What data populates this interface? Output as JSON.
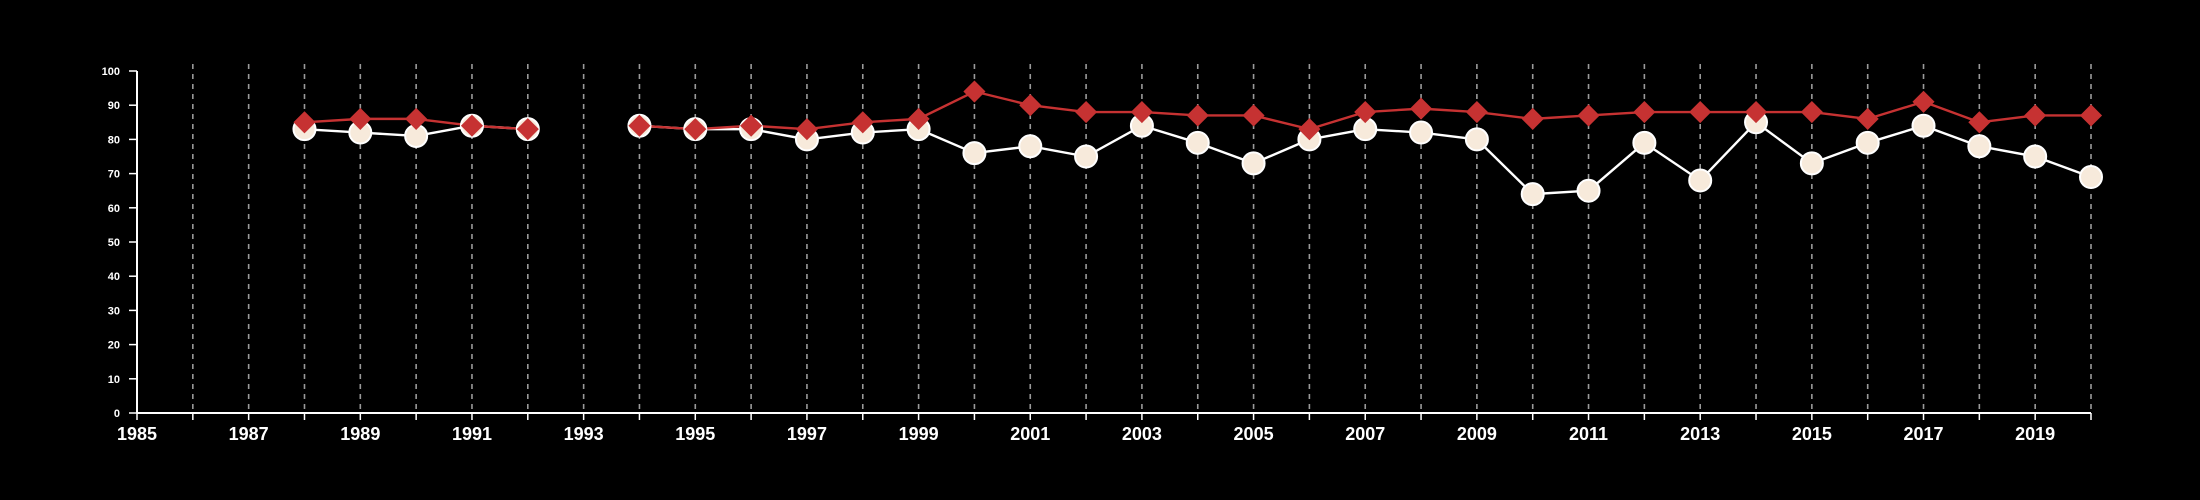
{
  "chart_data": {
    "type": "line",
    "title": "",
    "xlabel": "",
    "ylabel": "",
    "xlim": [
      1985,
      2020
    ],
    "ylim": [
      0,
      100
    ],
    "x_ticks": [
      "1985",
      "1987",
      "1989",
      "1991",
      "1993",
      "1995",
      "1997",
      "1999",
      "2001",
      "2003",
      "2005",
      "2007",
      "2009",
      "2011",
      "2013",
      "2015",
      "2017",
      "2019"
    ],
    "y_ticks": [
      "0",
      "10",
      "20",
      "30",
      "40",
      "50",
      "60",
      "70",
      "80",
      "90",
      "100"
    ],
    "grid": "vertical dashed lines at every year",
    "background": "#000000",
    "x": [
      1985,
      1986,
      1987,
      1988,
      1989,
      1990,
      1991,
      1992,
      1993,
      1994,
      1995,
      1996,
      1997,
      1998,
      1999,
      2000,
      2001,
      2002,
      2003,
      2004,
      2005,
      2006,
      2007,
      2008,
      2009,
      2010,
      2011,
      2012,
      2013,
      2014,
      2015,
      2016,
      2017,
      2018,
      2019,
      2020
    ],
    "series": [
      {
        "marker": "circle",
        "color": "#ffffff",
        "fill": "#f7eadb",
        "values": [
          null,
          null,
          null,
          83,
          82,
          81,
          84,
          83,
          null,
          84,
          83,
          83,
          80,
          82,
          83,
          76,
          78,
          75,
          84,
          79,
          73,
          80,
          83,
          82,
          80,
          64,
          65,
          79,
          68,
          85,
          73,
          79,
          84,
          78,
          75,
          69
        ]
      },
      {
        "marker": "diamond",
        "color": "#c63232",
        "fill": "#c63232",
        "values": [
          null,
          null,
          null,
          85,
          86,
          86,
          84,
          83,
          null,
          84,
          83,
          84,
          83,
          85,
          86,
          94,
          90,
          88,
          88,
          87,
          87,
          83,
          88,
          89,
          88,
          86,
          87,
          88,
          88,
          88,
          88,
          86,
          91,
          85,
          87,
          87
        ]
      }
    ]
  }
}
